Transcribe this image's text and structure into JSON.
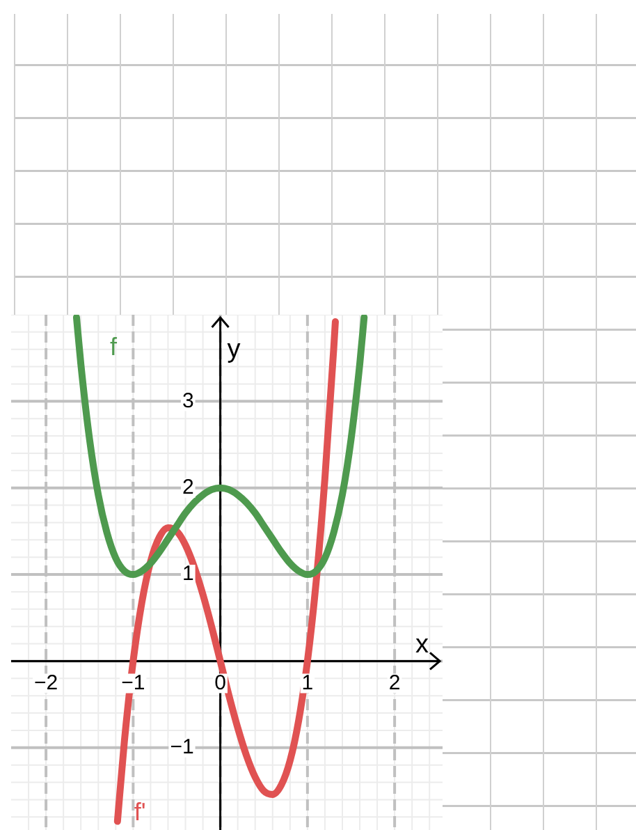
{
  "chart_data": {
    "type": "line",
    "xlabel": "x",
    "ylabel": "y",
    "xlim": [
      -2.4,
      2.55
    ],
    "ylim": [
      -1.95,
      4
    ],
    "xticks": [
      -2,
      -1,
      0,
      1,
      2
    ],
    "yticks": [
      -1,
      {
        "value": 0,
        "label": null
      },
      1,
      2,
      3
    ],
    "grid": true,
    "legend": false,
    "marker": "none",
    "line_style": "solid",
    "series": [
      {
        "name": "f",
        "color": "#4e9a4e",
        "x": [
          -1.65,
          -1.6,
          -1.5,
          -1.4,
          -1.3,
          -1.2,
          -1.1,
          -1,
          -0.9,
          -0.8,
          -0.7,
          -0.6,
          -0.5,
          -0.4,
          -0.3,
          -0.2,
          -0.1,
          0,
          0.1,
          0.2,
          0.3,
          0.4,
          0.5,
          0.6,
          0.7,
          0.8,
          0.9,
          1,
          1.1,
          1.2,
          1.3,
          1.4,
          1.5,
          1.6,
          1.65
        ],
        "values": [
          3.97,
          3.43,
          2.56,
          1.92,
          1.48,
          1.19,
          1.04,
          1,
          1.04,
          1.13,
          1.26,
          1.41,
          1.56,
          1.71,
          1.83,
          1.92,
          1.98,
          2,
          1.98,
          1.92,
          1.83,
          1.71,
          1.56,
          1.41,
          1.26,
          1.13,
          1.04,
          1,
          1.04,
          1.19,
          1.48,
          1.92,
          2.56,
          3.43,
          3.97
        ]
      },
      {
        "name": "f'",
        "color": "#e05252",
        "x": [
          -1.18,
          -1.1,
          -1,
          -0.9,
          -0.8,
          -0.7,
          -0.6,
          -0.5,
          -0.4,
          -0.3,
          -0.2,
          -0.1,
          0,
          0.1,
          0.2,
          0.3,
          0.4,
          0.5,
          0.6,
          0.7,
          0.8,
          0.9,
          1,
          1.1,
          1.2,
          1.3,
          1.32
        ],
        "values": [
          -1.85,
          -0.92,
          0,
          0.68,
          1.15,
          1.43,
          1.54,
          1.5,
          1.34,
          1.09,
          0.77,
          0.4,
          0,
          -0.4,
          -0.77,
          -1.09,
          -1.34,
          -1.5,
          -1.54,
          -1.43,
          -1.15,
          -0.68,
          0,
          0.92,
          2.11,
          3.59,
          3.92
        ]
      }
    ]
  }
}
